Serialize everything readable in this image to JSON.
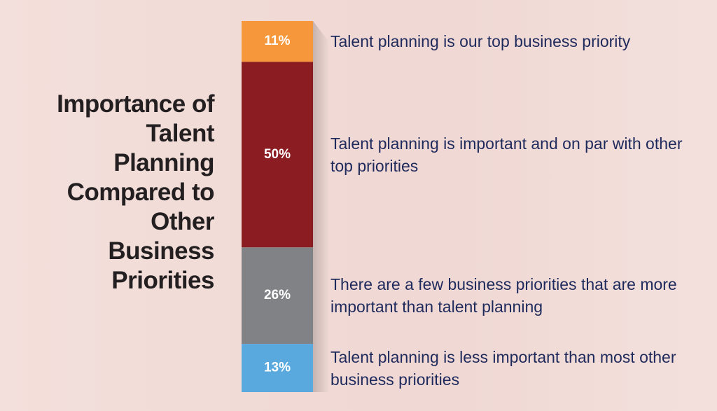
{
  "chart_data": {
    "type": "stacked-bar",
    "title": "Importance of Talent Planning Compared to Other Business Priorities",
    "series": [
      {
        "name": "Talent planning is our top business priority",
        "color": "#f5973a",
        "values": [
          11
        ],
        "value_labels": [
          "11%"
        ]
      },
      {
        "name": "Talent planning is important and on par with other top priorities",
        "color": "#8b1c22",
        "values": [
          50
        ],
        "value_labels": [
          "50%"
        ]
      },
      {
        "name": "There are a few business priorities that are more important than talent planning",
        "color": "#808285",
        "values": [
          26
        ],
        "value_labels": [
          "26%"
        ]
      },
      {
        "name": "Talent planning is less important than most other business priorities",
        "color": "#5aa9de",
        "values": [
          13
        ],
        "value_labels": [
          "13%"
        ]
      }
    ]
  }
}
